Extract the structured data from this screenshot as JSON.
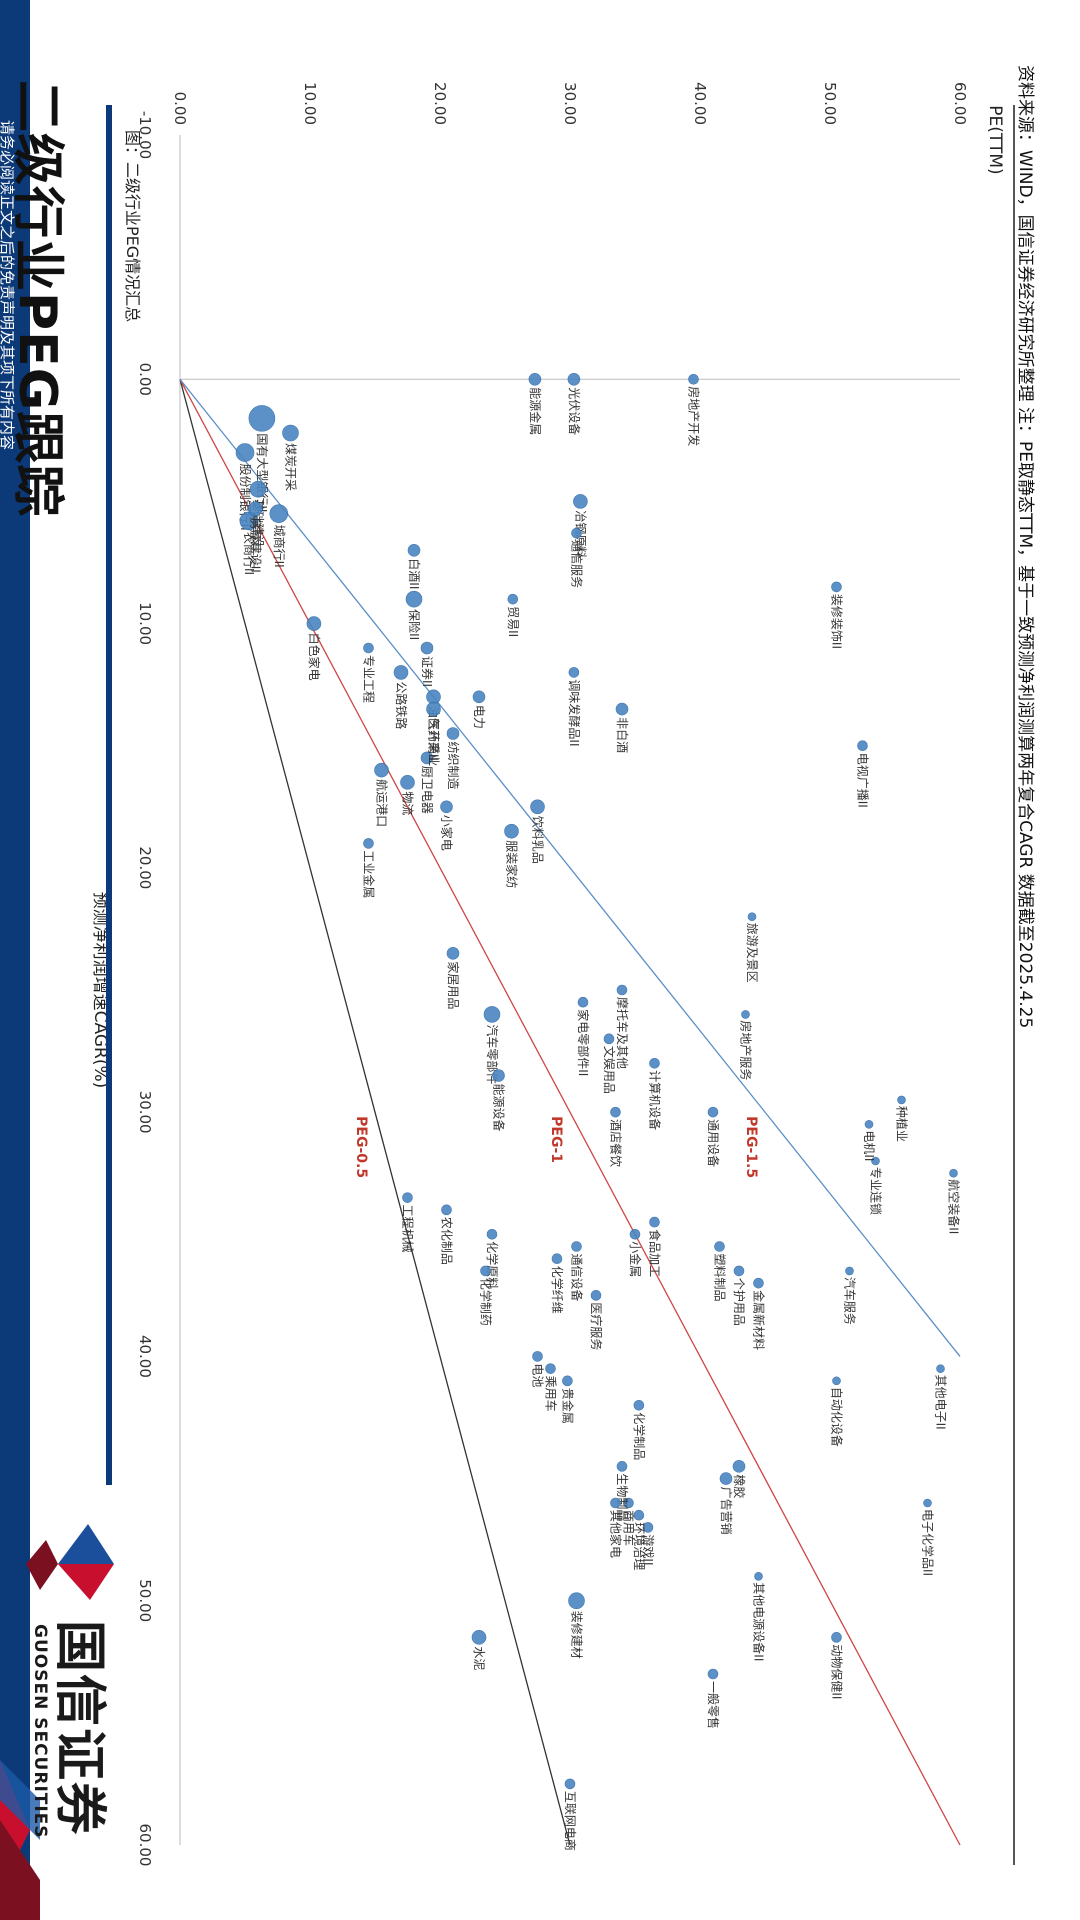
{
  "page": {
    "title": "二级行业PEG跟踪",
    "figure_caption": "图：二级行业PEG情况汇总",
    "source_note": "资料来源：WIND，国信证券经济研究所整理    注：PE取静态TTM，基于一致预测净利润测算两年复合CAGR    数据截至2025.4.25",
    "disclaimer": "请务必阅读正文之后的免责声明及其项下所有内容"
  },
  "logo": {
    "cn": "国信证券",
    "en": "GUOSEN SECURITIES"
  },
  "colors": {
    "brand_navy": "#0c3a78",
    "brand_red": "#c8102e",
    "bubble": "#4a86c0",
    "peg_0_5": "#333333",
    "peg_1": "#d04545",
    "peg_1_5": "#5a8fc8",
    "peg_label": "#c0392b"
  },
  "chart_data": {
    "type": "scatter",
    "xlabel": "预测净利润增速CAGR(%)",
    "ylabel": "PE(TTM)",
    "xlim": [
      -10,
      60
    ],
    "ylim": [
      0,
      60
    ],
    "x_ticks": [
      "-10.00",
      "0.00",
      "10.00",
      "20.00",
      "30.00",
      "40.00",
      "50.00",
      "60.00"
    ],
    "y_ticks": [
      "0.00",
      "10.00",
      "20.00",
      "30.00",
      "40.00",
      "50.00",
      "60.00"
    ],
    "reference_lines": [
      {
        "label": "PEG-0.5",
        "slope": 0.5
      },
      {
        "label": "PEG-1",
        "slope": 1
      },
      {
        "label": "PEG-1.5",
        "slope": 1.5
      }
    ],
    "points": [
      {
        "name": "房地产开发",
        "x": 0.0,
        "y": 39.5,
        "s": 5
      },
      {
        "name": "股份制银行II",
        "x": 3.0,
        "y": 5.0,
        "s": 9
      },
      {
        "name": "国有大型银行II",
        "x": 1.6,
        "y": 6.3,
        "s": 13
      },
      {
        "name": "煤炭开采",
        "x": 2.2,
        "y": 8.5,
        "s": 8
      },
      {
        "name": "农商行II",
        "x": 5.8,
        "y": 5.3,
        "s": 9
      },
      {
        "name": "城商行II",
        "x": 5.5,
        "y": 7.6,
        "s": 9
      },
      {
        "name": "基础建设",
        "x": 4.5,
        "y": 6.0,
        "s": 8
      },
      {
        "name": "房屋建设II",
        "x": 5.3,
        "y": 5.8,
        "s": 7
      },
      {
        "name": "白酒II",
        "x": 7.0,
        "y": 18.0,
        "s": 6
      },
      {
        "name": "白色家电",
        "x": 10.0,
        "y": 10.3,
        "s": 7
      },
      {
        "name": "专业工程",
        "x": 11.0,
        "y": 14.5,
        "s": 5
      },
      {
        "name": "能源金属",
        "x": 0.0,
        "y": 27.3,
        "s": 6
      },
      {
        "name": "光伏设备",
        "x": 0.0,
        "y": 30.3,
        "s": 6
      },
      {
        "name": "冶钢原料",
        "x": 5.0,
        "y": 30.8,
        "s": 7
      },
      {
        "name": "通信服务",
        "x": 6.3,
        "y": 30.5,
        "s": 5
      },
      {
        "name": "贸易II",
        "x": 9.0,
        "y": 25.6,
        "s": 5
      },
      {
        "name": "调味发酵品II",
        "x": 12.0,
        "y": 30.3,
        "s": 5
      },
      {
        "name": "非白酒",
        "x": 13.5,
        "y": 34.0,
        "s": 6
      },
      {
        "name": "装修装饰II",
        "x": 8.5,
        "y": 50.5,
        "s": 5
      },
      {
        "name": "电视广播II",
        "x": 15.0,
        "y": 52.5,
        "s": 5
      },
      {
        "name": "航空装备II",
        "x": 32.5,
        "y": 59.5,
        "s": 4
      },
      {
        "name": "汽车服务",
        "x": 36.5,
        "y": 51.5,
        "s": 4
      },
      {
        "name": "其他电子II",
        "x": 40.5,
        "y": 58.5,
        "s": 4
      },
      {
        "name": "电子化学品II",
        "x": 46.0,
        "y": 57.5,
        "s": 4
      },
      {
        "name": "自动化设备",
        "x": 41.0,
        "y": 50.5,
        "s": 4
      },
      {
        "name": "动物保健II",
        "x": 51.5,
        "y": 50.5,
        "s": 5
      },
      {
        "name": "其他电源设备II",
        "x": 49.0,
        "y": 44.5,
        "s": 4
      },
      {
        "name": "一般零售",
        "x": 53.0,
        "y": 41.0,
        "s": 5
      },
      {
        "name": "互联网电商",
        "x": 57.5,
        "y": 30.0,
        "s": 5
      },
      {
        "name": "装修建材",
        "x": 50.0,
        "y": 30.5,
        "s": 8
      },
      {
        "name": "水泥",
        "x": 51.5,
        "y": 23.0,
        "s": 7
      },
      {
        "name": "橡胶",
        "x": 44.5,
        "y": 43.0,
        "s": 6
      },
      {
        "name": "广告营销",
        "x": 45.0,
        "y": 42.0,
        "s": 6
      },
      {
        "name": "游戏II",
        "x": 47.0,
        "y": 36.0,
        "s": 5
      },
      {
        "name": "商用车",
        "x": 46.0,
        "y": 34.5,
        "s": 5
      },
      {
        "name": "环境治理",
        "x": 46.5,
        "y": 35.3,
        "s": 5
      },
      {
        "name": "生物制品",
        "x": 44.5,
        "y": 34.0,
        "s": 5
      },
      {
        "name": "其他家电",
        "x": 46.0,
        "y": 33.5,
        "s": 5
      },
      {
        "name": "化学制品",
        "x": 42.0,
        "y": 35.3,
        "s": 5
      },
      {
        "name": "贵金属",
        "x": 41.0,
        "y": 29.8,
        "s": 5
      },
      {
        "name": "乘用车",
        "x": 40.5,
        "y": 28.5,
        "s": 5
      },
      {
        "name": "电池",
        "x": 40.0,
        "y": 27.5,
        "s": 5
      },
      {
        "name": "医疗服务",
        "x": 37.5,
        "y": 32.0,
        "s": 5
      },
      {
        "name": "化学原料",
        "x": 35.0,
        "y": 24.0,
        "s": 5
      },
      {
        "name": "化学制药",
        "x": 36.5,
        "y": 23.5,
        "s": 5
      },
      {
        "name": "农化制品",
        "x": 34.0,
        "y": 20.5,
        "s": 5
      },
      {
        "name": "工程机械",
        "x": 33.5,
        "y": 17.5,
        "s": 5
      },
      {
        "name": "通信设备",
        "x": 35.5,
        "y": 30.5,
        "s": 5
      },
      {
        "name": "化学纤维",
        "x": 36.0,
        "y": 29.0,
        "s": 5
      },
      {
        "name": "小金属",
        "x": 35.0,
        "y": 35.0,
        "s": 5
      },
      {
        "name": "食品加工",
        "x": 34.5,
        "y": 36.5,
        "s": 5
      },
      {
        "name": "金属新材料",
        "x": 37.0,
        "y": 44.5,
        "s": 5
      },
      {
        "name": "个护用品",
        "x": 36.5,
        "y": 43.0,
        "s": 5
      },
      {
        "name": "塑料制品",
        "x": 35.5,
        "y": 41.5,
        "s": 5
      },
      {
        "name": "通用设备",
        "x": 30.0,
        "y": 41.0,
        "s": 5
      },
      {
        "name": "专业连锁",
        "x": 32.0,
        "y": 53.5,
        "s": 4
      },
      {
        "name": "电机II",
        "x": 30.5,
        "y": 53.0,
        "s": 4
      },
      {
        "name": "种植业",
        "x": 29.5,
        "y": 55.5,
        "s": 4
      },
      {
        "name": "旅游及景区",
        "x": 22.0,
        "y": 44.0,
        "s": 4
      },
      {
        "name": "房地产服务",
        "x": 26.0,
        "y": 43.5,
        "s": 4
      },
      {
        "name": "摩托车及其他",
        "x": 25.0,
        "y": 34.0,
        "s": 5
      },
      {
        "name": "计算机设备",
        "x": 28.0,
        "y": 36.5,
        "s": 5
      },
      {
        "name": "文娱用品",
        "x": 27.0,
        "y": 33.0,
        "s": 5
      },
      {
        "name": "酒店餐饮",
        "x": 30.0,
        "y": 33.5,
        "s": 5
      },
      {
        "name": "家电零部件II",
        "x": 25.5,
        "y": 31.0,
        "s": 5
      },
      {
        "name": "家居用品",
        "x": 23.5,
        "y": 21.0,
        "s": 6
      },
      {
        "name": "汽车零部件",
        "x": 26.0,
        "y": 24.0,
        "s": 8
      },
      {
        "name": "能源设备",
        "x": 28.5,
        "y": 24.5,
        "s": 6
      },
      {
        "name": "电力",
        "x": 13.0,
        "y": 23.0,
        "s": 6
      },
      {
        "name": "饮料乳品",
        "x": 17.5,
        "y": 27.5,
        "s": 7
      },
      {
        "name": "服装家纺",
        "x": 18.5,
        "y": 25.5,
        "s": 7
      },
      {
        "name": "小家电",
        "x": 17.5,
        "y": 20.5,
        "s": 6
      },
      {
        "name": "物流",
        "x": 16.5,
        "y": 17.5,
        "s": 7
      },
      {
        "name": "航运港口",
        "x": 16.0,
        "y": 15.5,
        "s": 7
      },
      {
        "name": "厨卫电器",
        "x": 15.5,
        "y": 19.0,
        "s": 6
      },
      {
        "name": "工业金属",
        "x": 19.0,
        "y": 14.5,
        "s": 5
      },
      {
        "name": "公路铁路",
        "x": 12.0,
        "y": 17.0,
        "s": 7
      },
      {
        "name": "油气开采II",
        "x": 13.0,
        "y": 19.5,
        "s": 7
      },
      {
        "name": "保险II",
        "x": 9.0,
        "y": 18.0,
        "s": 8
      },
      {
        "name": "证券II",
        "x": 11.0,
        "y": 19.0,
        "s": 6
      },
      {
        "name": "纺织制造",
        "x": 14.5,
        "y": 21.0,
        "s": 6
      },
      {
        "name": "医药商业",
        "x": 13.5,
        "y": 19.5,
        "s": 7
      }
    ]
  }
}
